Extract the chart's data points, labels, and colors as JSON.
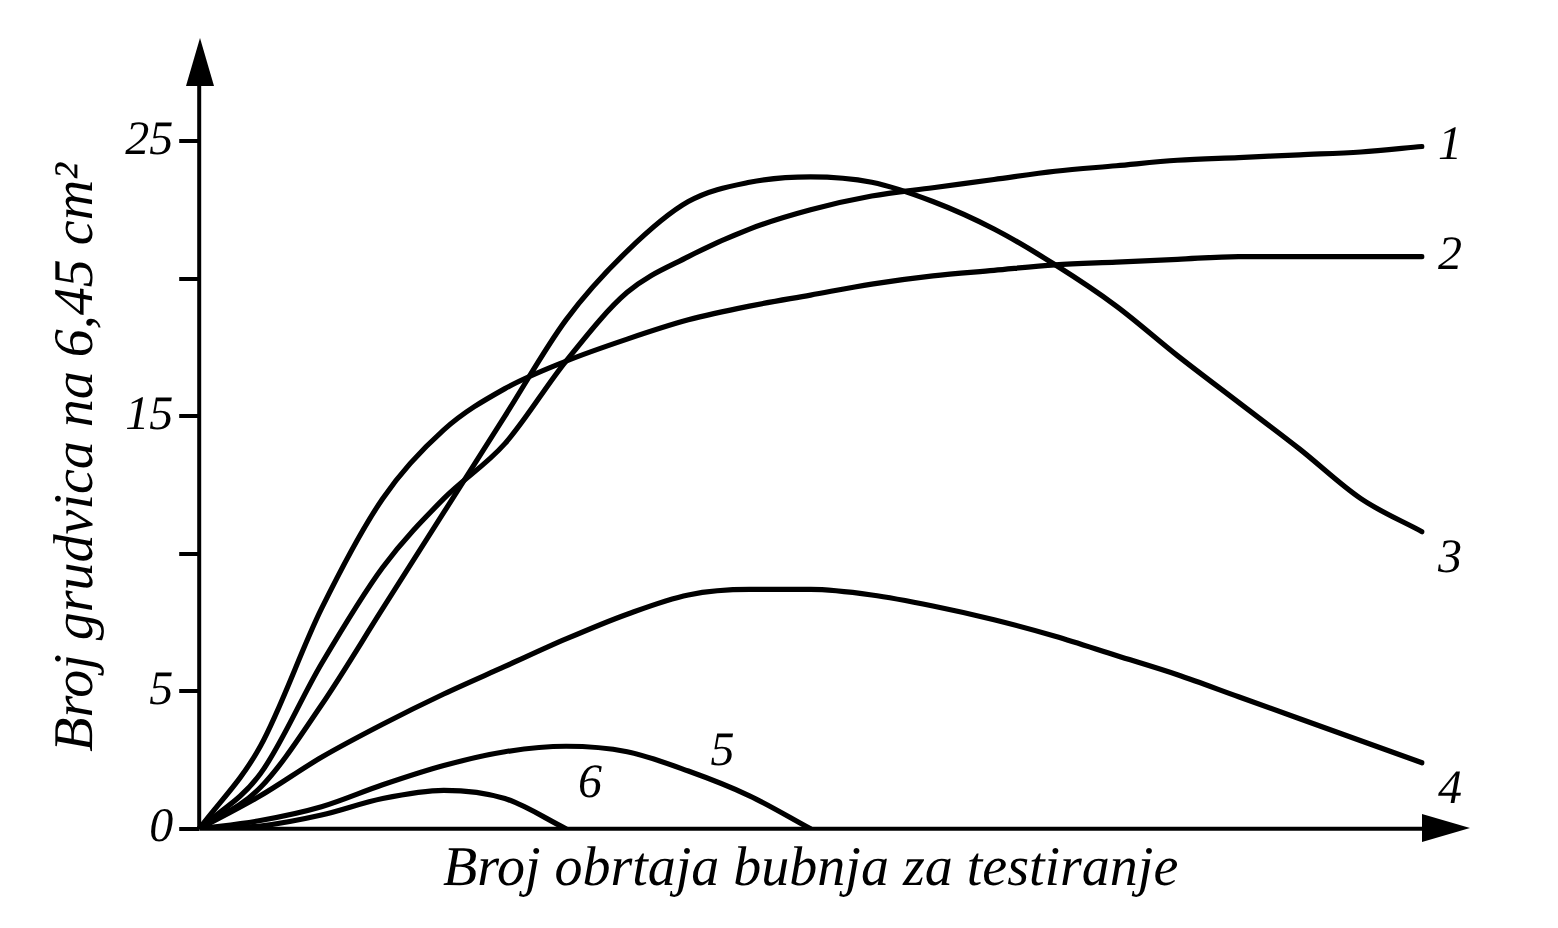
{
  "chart_data": {
    "type": "line",
    "xlabel": "Broj obrtaja bubnja za testiranje",
    "ylabel": "Broj grudvica na 6,45 cm²",
    "categories": [
      null,
      null,
      null,
      null,
      null,
      null,
      null,
      null,
      null,
      null,
      null,
      null,
      null,
      null,
      null,
      null,
      null,
      null,
      null,
      null,
      null
    ],
    "series": [
      {
        "name": "1",
        "color": "#000000",
        "values": [
          0,
          2,
          6,
          9.5,
          12,
          14,
          17,
          19.5,
          20.8,
          21.8,
          22.5,
          23,
          23.3,
          23.6,
          23.9,
          24.1,
          24.3,
          24.4,
          24.5,
          24.6,
          24.8
        ]
      },
      {
        "name": "2",
        "color": "#000000",
        "values": [
          0,
          3,
          8,
          12,
          14.5,
          16,
          17,
          17.8,
          18.5,
          19,
          19.4,
          19.8,
          20.1,
          20.3,
          20.5,
          20.6,
          20.7,
          20.8,
          20.8,
          20.8,
          20.8
        ]
      },
      {
        "name": "3",
        "color": "#000000",
        "values": [
          0,
          1.5,
          4.5,
          8,
          11.5,
          15,
          18.5,
          21,
          22.8,
          23.5,
          23.7,
          23.5,
          22.8,
          21.8,
          20.5,
          19,
          17.2,
          15.5,
          13.8,
          12,
          10.8
        ]
      },
      {
        "name": "4",
        "color": "#000000",
        "values": [
          0,
          1.2,
          2.6,
          3.8,
          4.9,
          5.9,
          6.9,
          7.8,
          8.5,
          8.7,
          8.7,
          8.5,
          8.1,
          7.6,
          7,
          6.3,
          5.6,
          4.8,
          4,
          3.2,
          2.4
        ]
      },
      {
        "name": "5",
        "color": "#000000",
        "values": [
          0,
          0.3,
          0.8,
          1.6,
          2.3,
          2.8,
          3,
          2.8,
          2.1,
          1.2,
          0,
          null,
          null,
          null,
          null,
          null,
          null,
          null,
          null,
          null,
          null
        ]
      },
      {
        "name": "6",
        "color": "#000000",
        "values": [
          0,
          0.1,
          0.5,
          1.1,
          1.4,
          1.1,
          0,
          null,
          null,
          null,
          null,
          null,
          null,
          null,
          null,
          null,
          null,
          null,
          null,
          null,
          null
        ]
      }
    ],
    "ylim": [
      0,
      27
    ],
    "yticks": [
      0,
      5,
      {
        "value": 10,
        "label": null
      },
      15,
      {
        "value": 20,
        "label": null
      },
      25
    ],
    "tick_labels": "y",
    "grid": false,
    "legend": false,
    "marker": "none",
    "line_style": "solid"
  }
}
